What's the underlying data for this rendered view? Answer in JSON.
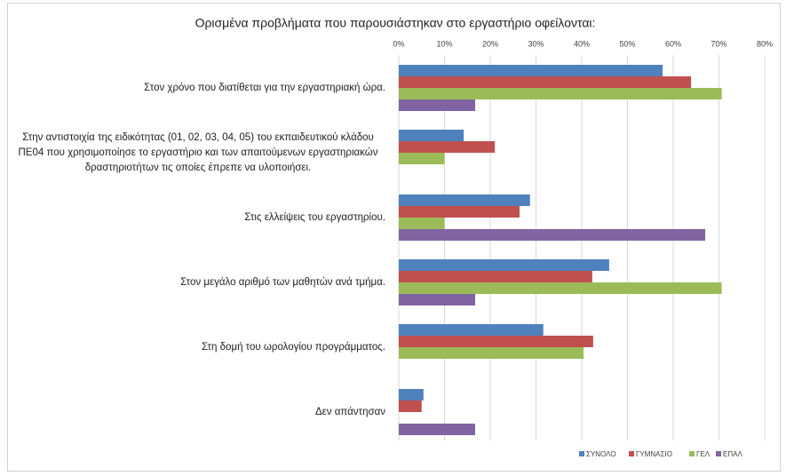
{
  "chart_data": {
    "type": "barh",
    "title": "Ορισμένα προβλήματα που παρουσιάστηκαν στο εργαστήριο  οφείλονται:",
    "categories": [
      "Στον χρόνο που διατίθεται για την εργαστηριακή ώρα.",
      "Στην αντιστοιχία της ειδικότητας (01, 02, 03, 04, 05) του εκπαιδευτικού κλάδου ΠΕ04 που χρησιμοποίησε το εργαστήριο και των απαιτούμενων εργαστηριακών δραστηριοτήτων τις οποίες έπρεπε να υλοποιήσει.",
      "Στις ελλείψεις του εργαστηρίου.",
      "Στον μεγάλο αριθμό των μαθητών ανά τμήμα.",
      "Στη δομή του ωρολογίου προγράμματος.",
      "Δεν απάντησαν"
    ],
    "series": [
      {
        "name": "ΣΥΝΟΛΟ",
        "color": "#4f81bd",
        "values": [
          57.7,
          14.2,
          28.7,
          46,
          31.6,
          5.4
        ]
      },
      {
        "name": "ΓΥΜΝΑΣΙΟ",
        "color": "#c0504d",
        "values": [
          63.9,
          21,
          26.4,
          42.3,
          42.5,
          5
        ]
      },
      {
        "name": "ΓΕΛ",
        "color": "#9bbb59",
        "values": [
          70.6,
          10,
          10,
          70.6,
          40.4,
          0
        ]
      },
      {
        "name": "ΕΠΑΛ",
        "color": "#8064a2",
        "values": [
          16.7,
          0,
          67,
          16.7,
          0,
          16.7
        ]
      }
    ],
    "xlim": [
      0,
      80
    ],
    "xticks": [
      {
        "value": 0,
        "label": "0%"
      },
      {
        "value": 10,
        "label": "10%"
      },
      {
        "value": 20,
        "label": "20%"
      },
      {
        "value": 30,
        "label": "30%"
      },
      {
        "value": 40,
        "label": "40%"
      },
      {
        "value": 50,
        "label": "50%"
      },
      {
        "value": 60,
        "label": "60%"
      },
      {
        "value": 70,
        "label": "70%"
      },
      {
        "value": 80,
        "label": "80%"
      }
    ],
    "grid": true,
    "legend": "bottom-right"
  }
}
